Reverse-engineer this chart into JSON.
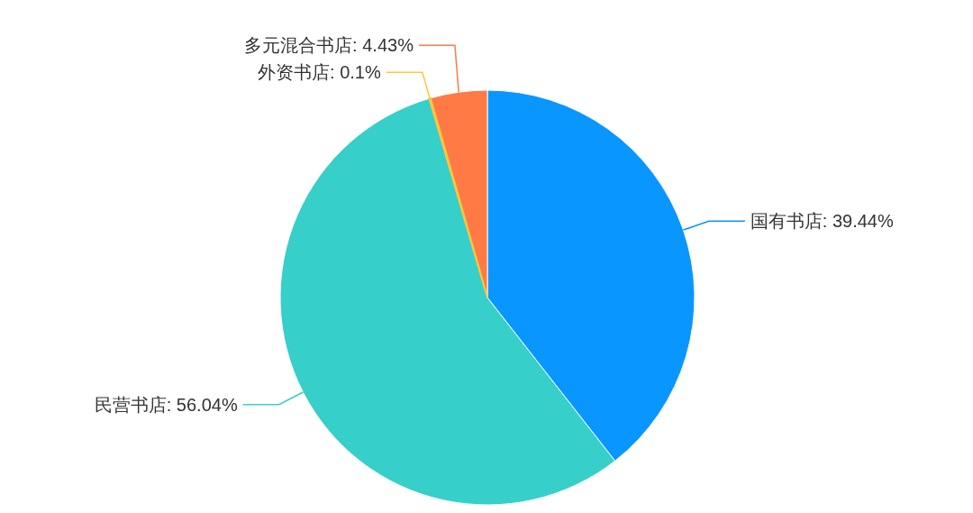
{
  "chart_data": {
    "type": "pie",
    "categories": [
      "国有书店",
      "民营书店",
      "外资书店",
      "多元混合书店"
    ],
    "values": [
      39.44,
      56.04,
      0.1,
      4.43
    ],
    "colors": [
      "#0a96ff",
      "#36cfc9",
      "#ffc53d",
      "#ff7a45"
    ],
    "value_labels": [
      "39.44%",
      "56.04%",
      "0.1%",
      "4.43%"
    ]
  }
}
